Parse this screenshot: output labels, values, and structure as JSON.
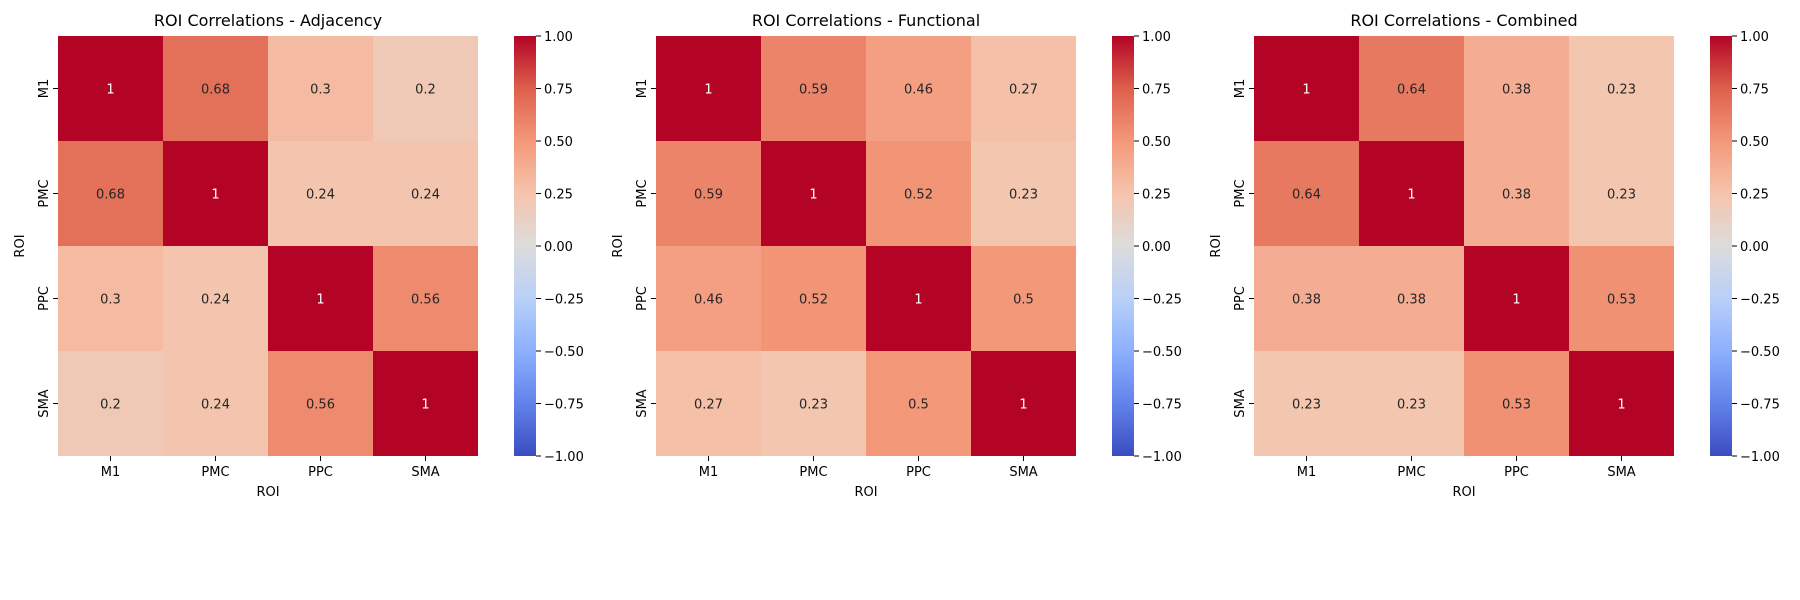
{
  "chart_data": [
    {
      "type": "heatmap",
      "title": "ROI Correlations - Adjacency",
      "xlabel": "ROI",
      "ylabel": "ROI",
      "x_categories": [
        "M1",
        "PMC",
        "PPC",
        "SMA"
      ],
      "y_categories": [
        "M1",
        "PMC",
        "PPC",
        "SMA"
      ],
      "values": [
        [
          1,
          0.68,
          0.3,
          0.2
        ],
        [
          0.68,
          1,
          0.24,
          0.24
        ],
        [
          0.3,
          0.24,
          1,
          0.56
        ],
        [
          0.2,
          0.24,
          0.56,
          1
        ]
      ],
      "vmin": -1,
      "vmax": 1,
      "colormap": "coolwarm",
      "colorbar_ticks": [
        "1.00",
        "0.75",
        "0.50",
        "0.25",
        "0.00",
        "−0.25",
        "−0.50",
        "−0.75",
        "−1.00"
      ]
    },
    {
      "type": "heatmap",
      "title": "ROI Correlations - Functional",
      "xlabel": "ROI",
      "ylabel": "ROI",
      "x_categories": [
        "M1",
        "PMC",
        "PPC",
        "SMA"
      ],
      "y_categories": [
        "M1",
        "PMC",
        "PPC",
        "SMA"
      ],
      "values": [
        [
          1,
          0.59,
          0.46,
          0.27
        ],
        [
          0.59,
          1,
          0.52,
          0.23
        ],
        [
          0.46,
          0.52,
          1,
          0.5
        ],
        [
          0.27,
          0.23,
          0.5,
          1
        ]
      ],
      "vmin": -1,
      "vmax": 1,
      "colormap": "coolwarm",
      "colorbar_ticks": [
        "1.00",
        "0.75",
        "0.50",
        "0.25",
        "0.00",
        "−0.25",
        "−0.50",
        "−0.75",
        "−1.00"
      ]
    },
    {
      "type": "heatmap",
      "title": "ROI Correlations - Combined",
      "xlabel": "ROI",
      "ylabel": "ROI",
      "x_categories": [
        "M1",
        "PMC",
        "PPC",
        "SMA"
      ],
      "y_categories": [
        "M1",
        "PMC",
        "PPC",
        "SMA"
      ],
      "values": [
        [
          1,
          0.64,
          0.38,
          0.23
        ],
        [
          0.64,
          1,
          0.38,
          0.23
        ],
        [
          0.38,
          0.38,
          1,
          0.53
        ],
        [
          0.23,
          0.23,
          0.53,
          1
        ]
      ],
      "vmin": -1,
      "vmax": 1,
      "colormap": "coolwarm",
      "colorbar_ticks": [
        "1.00",
        "0.75",
        "0.50",
        "0.25",
        "0.00",
        "−0.25",
        "−0.50",
        "−0.75",
        "−1.00"
      ]
    }
  ]
}
